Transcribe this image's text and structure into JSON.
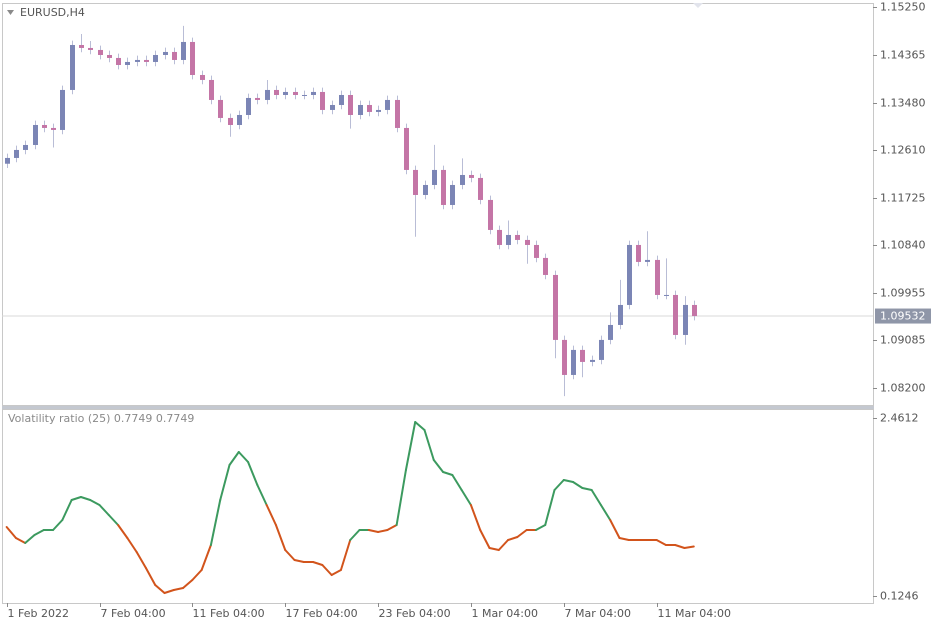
{
  "chart_data": [
    {
      "type": "candlestick",
      "title": "EURUSD,H4",
      "up_color": "#7b85b5",
      "down_color": "#c475a6",
      "wick_color": "#b9bdd6",
      "xlim": [
        -0.5,
        93.3
      ],
      "ylim": [
        1.07886,
        1.15324
      ],
      "yticks": [
        {
          "value": 1.1525,
          "label": "1.15250"
        },
        {
          "value": 1.14365,
          "label": "1.14365"
        },
        {
          "value": 1.1348,
          "label": "1.13480"
        },
        {
          "value": 1.1261,
          "label": "1.12610"
        },
        {
          "value": 1.11725,
          "label": "1.11725"
        },
        {
          "value": 1.1084,
          "label": "1.10840"
        },
        {
          "value": 1.09955,
          "label": "1.09955"
        },
        {
          "value": 1.09085,
          "label": "1.09085"
        },
        {
          "value": 1.082,
          "label": "1.08200"
        }
      ],
      "current_price": {
        "value": 1.09532,
        "label": "1.09532"
      },
      "open": [
        1.1235,
        1.12457,
        1.12605,
        1.12697,
        1.13067,
        1.13012,
        1.12975,
        1.13715,
        1.14547,
        1.14492,
        1.14455,
        1.14362,
        1.14307,
        1.14177,
        1.14233,
        1.1427,
        1.14233,
        1.14362,
        1.14418,
        1.1427,
        1.14603,
        1.13992,
        1.139,
        1.1353,
        1.13197,
        1.13067,
        1.13252,
        1.13567,
        1.1353,
        1.13715,
        1.13622,
        1.13678,
        1.13622,
        1.13622,
        1.13678,
        1.13345,
        1.13437,
        1.13622,
        1.13252,
        1.13437,
        1.13308,
        1.13345,
        1.1353,
        1.13012,
        1.12235,
        1.11772,
        1.11957,
        1.12235,
        1.11587,
        1.11957,
        1.12142,
        1.12087,
        1.1168,
        1.11125,
        1.10847,
        1.11032,
        1.1094,
        1.10847,
        1.10607,
        1.10292,
        1.0909,
        1.08442,
        1.08905,
        1.08683,
        1.0872,
        1.0909,
        1.09367,
        1.09737,
        1.10847,
        1.10533,
        1.1057,
        1.09922,
        1.09922,
        1.09182,
        1.09737
      ],
      "high": [
        1.12537,
        1.12685,
        1.12777,
        1.13147,
        1.13147,
        1.13092,
        1.13795,
        1.14627,
        1.1475,
        1.1462,
        1.14535,
        1.14442,
        1.14387,
        1.14313,
        1.1435,
        1.1435,
        1.14442,
        1.14498,
        1.14498,
        1.149,
        1.14683,
        1.14072,
        1.1398,
        1.1361,
        1.13277,
        1.13332,
        1.13647,
        1.13647,
        1.139,
        1.13795,
        1.13758,
        1.13758,
        1.13702,
        1.13758,
        1.13758,
        1.13517,
        1.13702,
        1.13702,
        1.13517,
        1.13517,
        1.13425,
        1.1361,
        1.1361,
        1.13092,
        1.12315,
        1.12037,
        1.127,
        1.12315,
        1.12037,
        1.1245,
        1.12222,
        1.12167,
        1.1176,
        1.11205,
        1.113,
        1.11112,
        1.1102,
        1.10927,
        1.10687,
        1.10372,
        1.0917,
        1.08985,
        1.08985,
        1.088,
        1.0917,
        1.096,
        1.102,
        1.10927,
        1.10927,
        1.111,
        1.1065,
        1.106,
        1.10002,
        1.099,
        1.09817
      ],
      "low": [
        1.1227,
        1.12377,
        1.12525,
        1.12617,
        1.12932,
        1.1265,
        1.12895,
        1.13635,
        1.14412,
        1.14375,
        1.14282,
        1.14227,
        1.14097,
        1.14097,
        1.14153,
        1.14153,
        1.14153,
        1.14282,
        1.1419,
        1.1419,
        1.13912,
        1.1382,
        1.1345,
        1.13117,
        1.1285,
        1.12987,
        1.13172,
        1.1345,
        1.1345,
        1.13542,
        1.13542,
        1.13542,
        1.13542,
        1.13542,
        1.13265,
        1.13265,
        1.13357,
        1.13,
        1.13172,
        1.13228,
        1.13228,
        1.13265,
        1.12932,
        1.12155,
        1.11,
        1.11692,
        1.11877,
        1.11507,
        1.11507,
        1.11877,
        1.12007,
        1.116,
        1.11045,
        1.10767,
        1.10767,
        1.1086,
        1.105,
        1.10527,
        1.10212,
        1.0875,
        1.0805,
        1.08362,
        1.084,
        1.08603,
        1.0864,
        1.0901,
        1.09287,
        1.09657,
        1.10453,
        1.10453,
        1.09842,
        1.09842,
        1.09102,
        1.09,
        1.09452
      ],
      "close": [
        1.12457,
        1.12605,
        1.12697,
        1.13067,
        1.13012,
        1.12975,
        1.13715,
        1.14547,
        1.14492,
        1.14455,
        1.14362,
        1.14307,
        1.14177,
        1.14233,
        1.1427,
        1.14233,
        1.14362,
        1.14418,
        1.1427,
        1.14603,
        1.13992,
        1.139,
        1.1353,
        1.13197,
        1.13067,
        1.13252,
        1.13567,
        1.1353,
        1.13715,
        1.13622,
        1.13678,
        1.13622,
        1.13622,
        1.13678,
        1.13345,
        1.13437,
        1.13622,
        1.13252,
        1.13437,
        1.13308,
        1.13345,
        1.1353,
        1.13012,
        1.12235,
        1.11772,
        1.11957,
        1.12235,
        1.11587,
        1.11957,
        1.12142,
        1.12087,
        1.1168,
        1.11125,
        1.10847,
        1.11032,
        1.1094,
        1.10847,
        1.10607,
        1.10292,
        1.0909,
        1.08442,
        1.08905,
        1.08683,
        1.0872,
        1.0909,
        1.09367,
        1.09737,
        1.10847,
        1.10533,
        1.1057,
        1.09922,
        1.09922,
        1.09182,
        1.09737,
        1.09532
      ]
    },
    {
      "type": "line",
      "title": "Volatility ratio (25) 0.7749 0.7749",
      "xlim": [
        -0.5,
        93.3
      ],
      "xticks": [
        {
          "value": 0,
          "label": "1 Feb 2022"
        },
        {
          "value": 10,
          "label": "7 Feb 04:00"
        },
        {
          "value": 20,
          "label": "11 Feb 04:00"
        },
        {
          "value": 30,
          "label": "17 Feb 04:00"
        },
        {
          "value": 40,
          "label": "23 Feb 04:00"
        },
        {
          "value": 50,
          "label": "1 Mar 04:00"
        },
        {
          "value": 60,
          "label": "7 Mar 04:00"
        },
        {
          "value": 70,
          "label": "11 Mar 04:00"
        }
      ],
      "ylim": [
        0.0333,
        2.5662
      ],
      "yticks": [
        2.4612,
        0.1246
      ],
      "values": [
        1.0307,
        0.8863,
        0.8207,
        0.9257,
        0.9913,
        0.9913,
        1.1226,
        1.385,
        1.4244,
        1.385,
        1.3194,
        1.1882,
        1.0569,
        0.8863,
        0.7026,
        0.4926,
        0.2695,
        0.1645,
        0.2039,
        0.2301,
        0.3351,
        0.4664,
        0.7945,
        1.385,
        1.8444,
        2.015,
        1.8837,
        1.5819,
        1.3194,
        1.0569,
        0.7288,
        0.5976,
        0.5713,
        0.5713,
        0.532,
        0.4007,
        0.4664,
        0.8601,
        0.9913,
        0.9913,
        0.9651,
        0.9913,
        1.0569,
        1.7788,
        2.4087,
        2.3037,
        1.91,
        1.7525,
        1.7131,
        1.5163,
        1.3194,
        0.9913,
        0.7551,
        0.7288,
        0.8601,
        0.8994,
        0.9913,
        0.9913,
        1.0569,
        1.5163,
        1.6475,
        1.6213,
        1.5425,
        1.5163,
        1.3194,
        1.1226,
        0.8863,
        0.8601,
        0.8601,
        0.8601,
        0.8601,
        0.7945,
        0.7945,
        0.7551,
        0.7749
      ],
      "point_colors": [
        "#d2541c",
        "#d2541c",
        "#d2541c",
        "#3c9a5f",
        "#3c9a5f",
        "#3c9a5f",
        "#3c9a5f",
        "#3c9a5f",
        "#3c9a5f",
        "#3c9a5f",
        "#3c9a5f",
        "#3c9a5f",
        "#3c9a5f",
        "#d2541c",
        "#d2541c",
        "#d2541c",
        "#d2541c",
        "#d2541c",
        "#d2541c",
        "#d2541c",
        "#d2541c",
        "#d2541c",
        "#d2541c",
        "#3c9a5f",
        "#3c9a5f",
        "#3c9a5f",
        "#3c9a5f",
        "#3c9a5f",
        "#3c9a5f",
        "#d2541c",
        "#d2541c",
        "#d2541c",
        "#d2541c",
        "#d2541c",
        "#d2541c",
        "#d2541c",
        "#d2541c",
        "#d2541c",
        "#3c9a5f",
        "#3c9a5f",
        "#d2541c",
        "#d2541c",
        "#d2541c",
        "#3c9a5f",
        "#3c9a5f",
        "#3c9a5f",
        "#3c9a5f",
        "#3c9a5f",
        "#3c9a5f",
        "#3c9a5f",
        "#3c9a5f",
        "#d2541c",
        "#d2541c",
        "#d2541c",
        "#d2541c",
        "#d2541c",
        "#d2541c",
        "#d2541c",
        "#3c9a5f",
        "#3c9a5f",
        "#3c9a5f",
        "#3c9a5f",
        "#3c9a5f",
        "#3c9a5f",
        "#3c9a5f",
        "#3c9a5f",
        "#d2541c",
        "#d2541c",
        "#d2541c",
        "#d2541c",
        "#d2541c",
        "#d2541c",
        "#d2541c",
        "#d2541c",
        "#d2541c"
      ]
    }
  ]
}
